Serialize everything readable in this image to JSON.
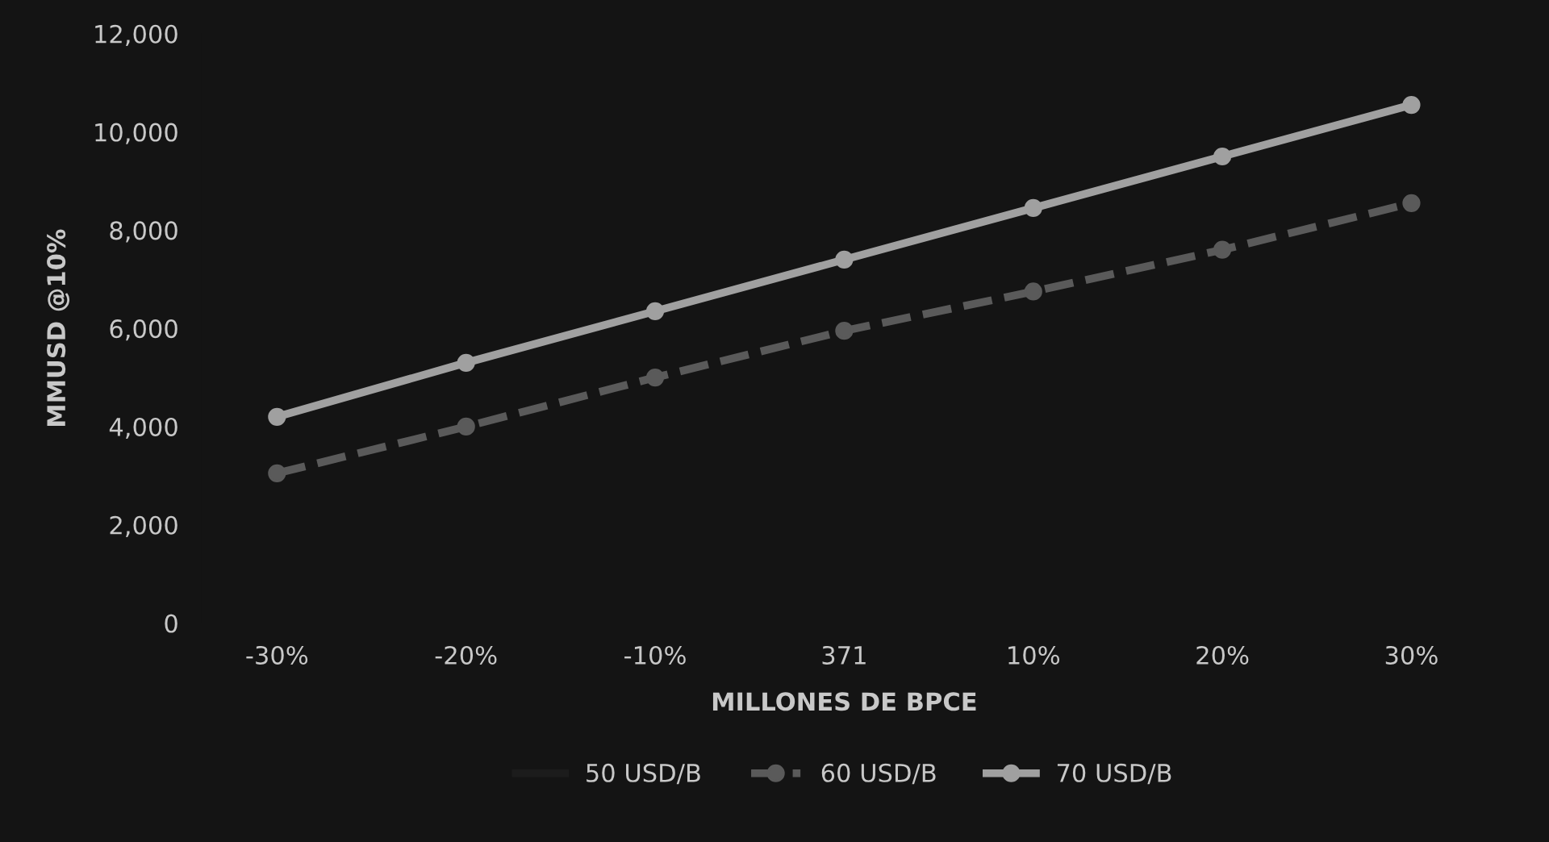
{
  "chart_data": {
    "type": "line",
    "xlabel": "MILLONES DE BPCE",
    "ylabel": "MMUSD @10%",
    "categories": [
      "-30%",
      "-20%",
      "-10%",
      "371",
      "10%",
      "20%",
      "30%"
    ],
    "series": [
      {
        "name": "50 USD/B",
        "color": "#1c1c1c",
        "values": [
          null,
          null,
          null,
          null,
          null,
          null,
          null
        ],
        "line_style": "solid",
        "marker": "none"
      },
      {
        "name": "60 USD/B",
        "color": "#5a5a5a",
        "values": [
          3050,
          4000,
          5000,
          5950,
          6750,
          7600,
          8550
        ],
        "line_style": "dashed",
        "marker": "circle"
      },
      {
        "name": "70 USD/B",
        "color": "#a0a0a0",
        "values": [
          4200,
          5300,
          6350,
          7400,
          8450,
          9500,
          10550
        ],
        "line_style": "solid",
        "marker": "circle"
      }
    ],
    "ylim": [
      0,
      12000
    ],
    "yticks": [
      {
        "value": 0,
        "label": "0"
      },
      {
        "value": 2000,
        "label": "2,000"
      },
      {
        "value": 4000,
        "label": "4,000"
      },
      {
        "value": 6000,
        "label": "6,000"
      },
      {
        "value": 8000,
        "label": "8,000"
      },
      {
        "value": 10000,
        "label": "10,000"
      },
      {
        "value": 12000,
        "label": "12,000"
      }
    ],
    "grid": false,
    "legend": "bottom"
  }
}
